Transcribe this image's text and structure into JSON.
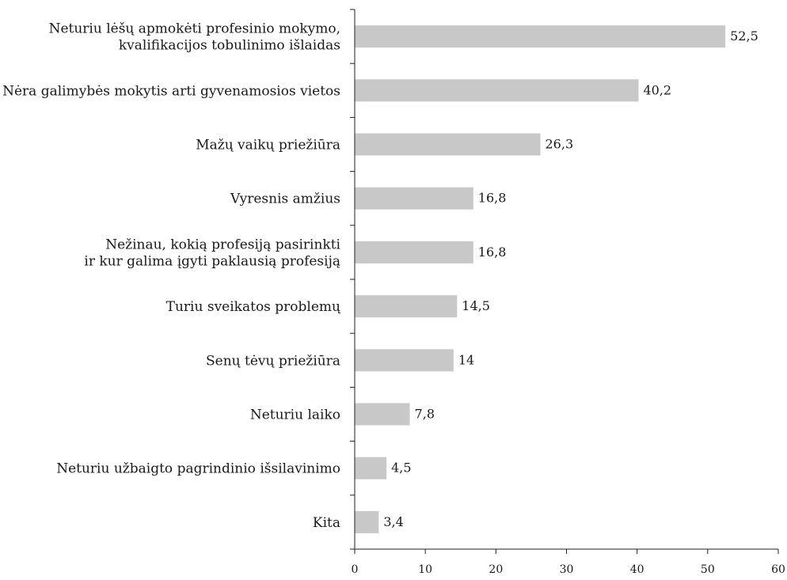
{
  "chart_data": {
    "type": "bar",
    "orientation": "horizontal",
    "categories": [
      [
        "Neturiu lėšų apmokėti profesinio mokymo,",
        "kvalifikacijos tobulinimo išlaidas"
      ],
      [
        "Nėra galimybės mokytis arti gyvenamosios vietos"
      ],
      [
        "Mažų vaikų priežiūra"
      ],
      [
        "Vyresnis amžius"
      ],
      [
        "Nežinau, kokią profesiją pasirinkti",
        "ir kur galima įgyti paklausią profesiją"
      ],
      [
        "Turiu sveikatos problemų"
      ],
      [
        "Senų tėvų priežiūra"
      ],
      [
        "Neturiu laiko"
      ],
      [
        "Neturiu užbaigto pagrindinio išsilavinimo"
      ],
      [
        "Kita"
      ]
    ],
    "values": [
      52.5,
      40.2,
      26.3,
      16.8,
      16.8,
      14.5,
      14,
      7.8,
      4.5,
      3.4
    ],
    "value_labels": [
      "52,5",
      "40,2",
      "26,3",
      "16,8",
      "16,8",
      "14,5",
      "14",
      "7,8",
      "4,5",
      "3,4"
    ],
    "xlim": [
      0,
      60
    ],
    "x_ticks": [
      0,
      10,
      20,
      30,
      40,
      50,
      60
    ],
    "grid": false,
    "bar_color": "#c8c8c8",
    "title": "",
    "xlabel": "",
    "ylabel": ""
  }
}
